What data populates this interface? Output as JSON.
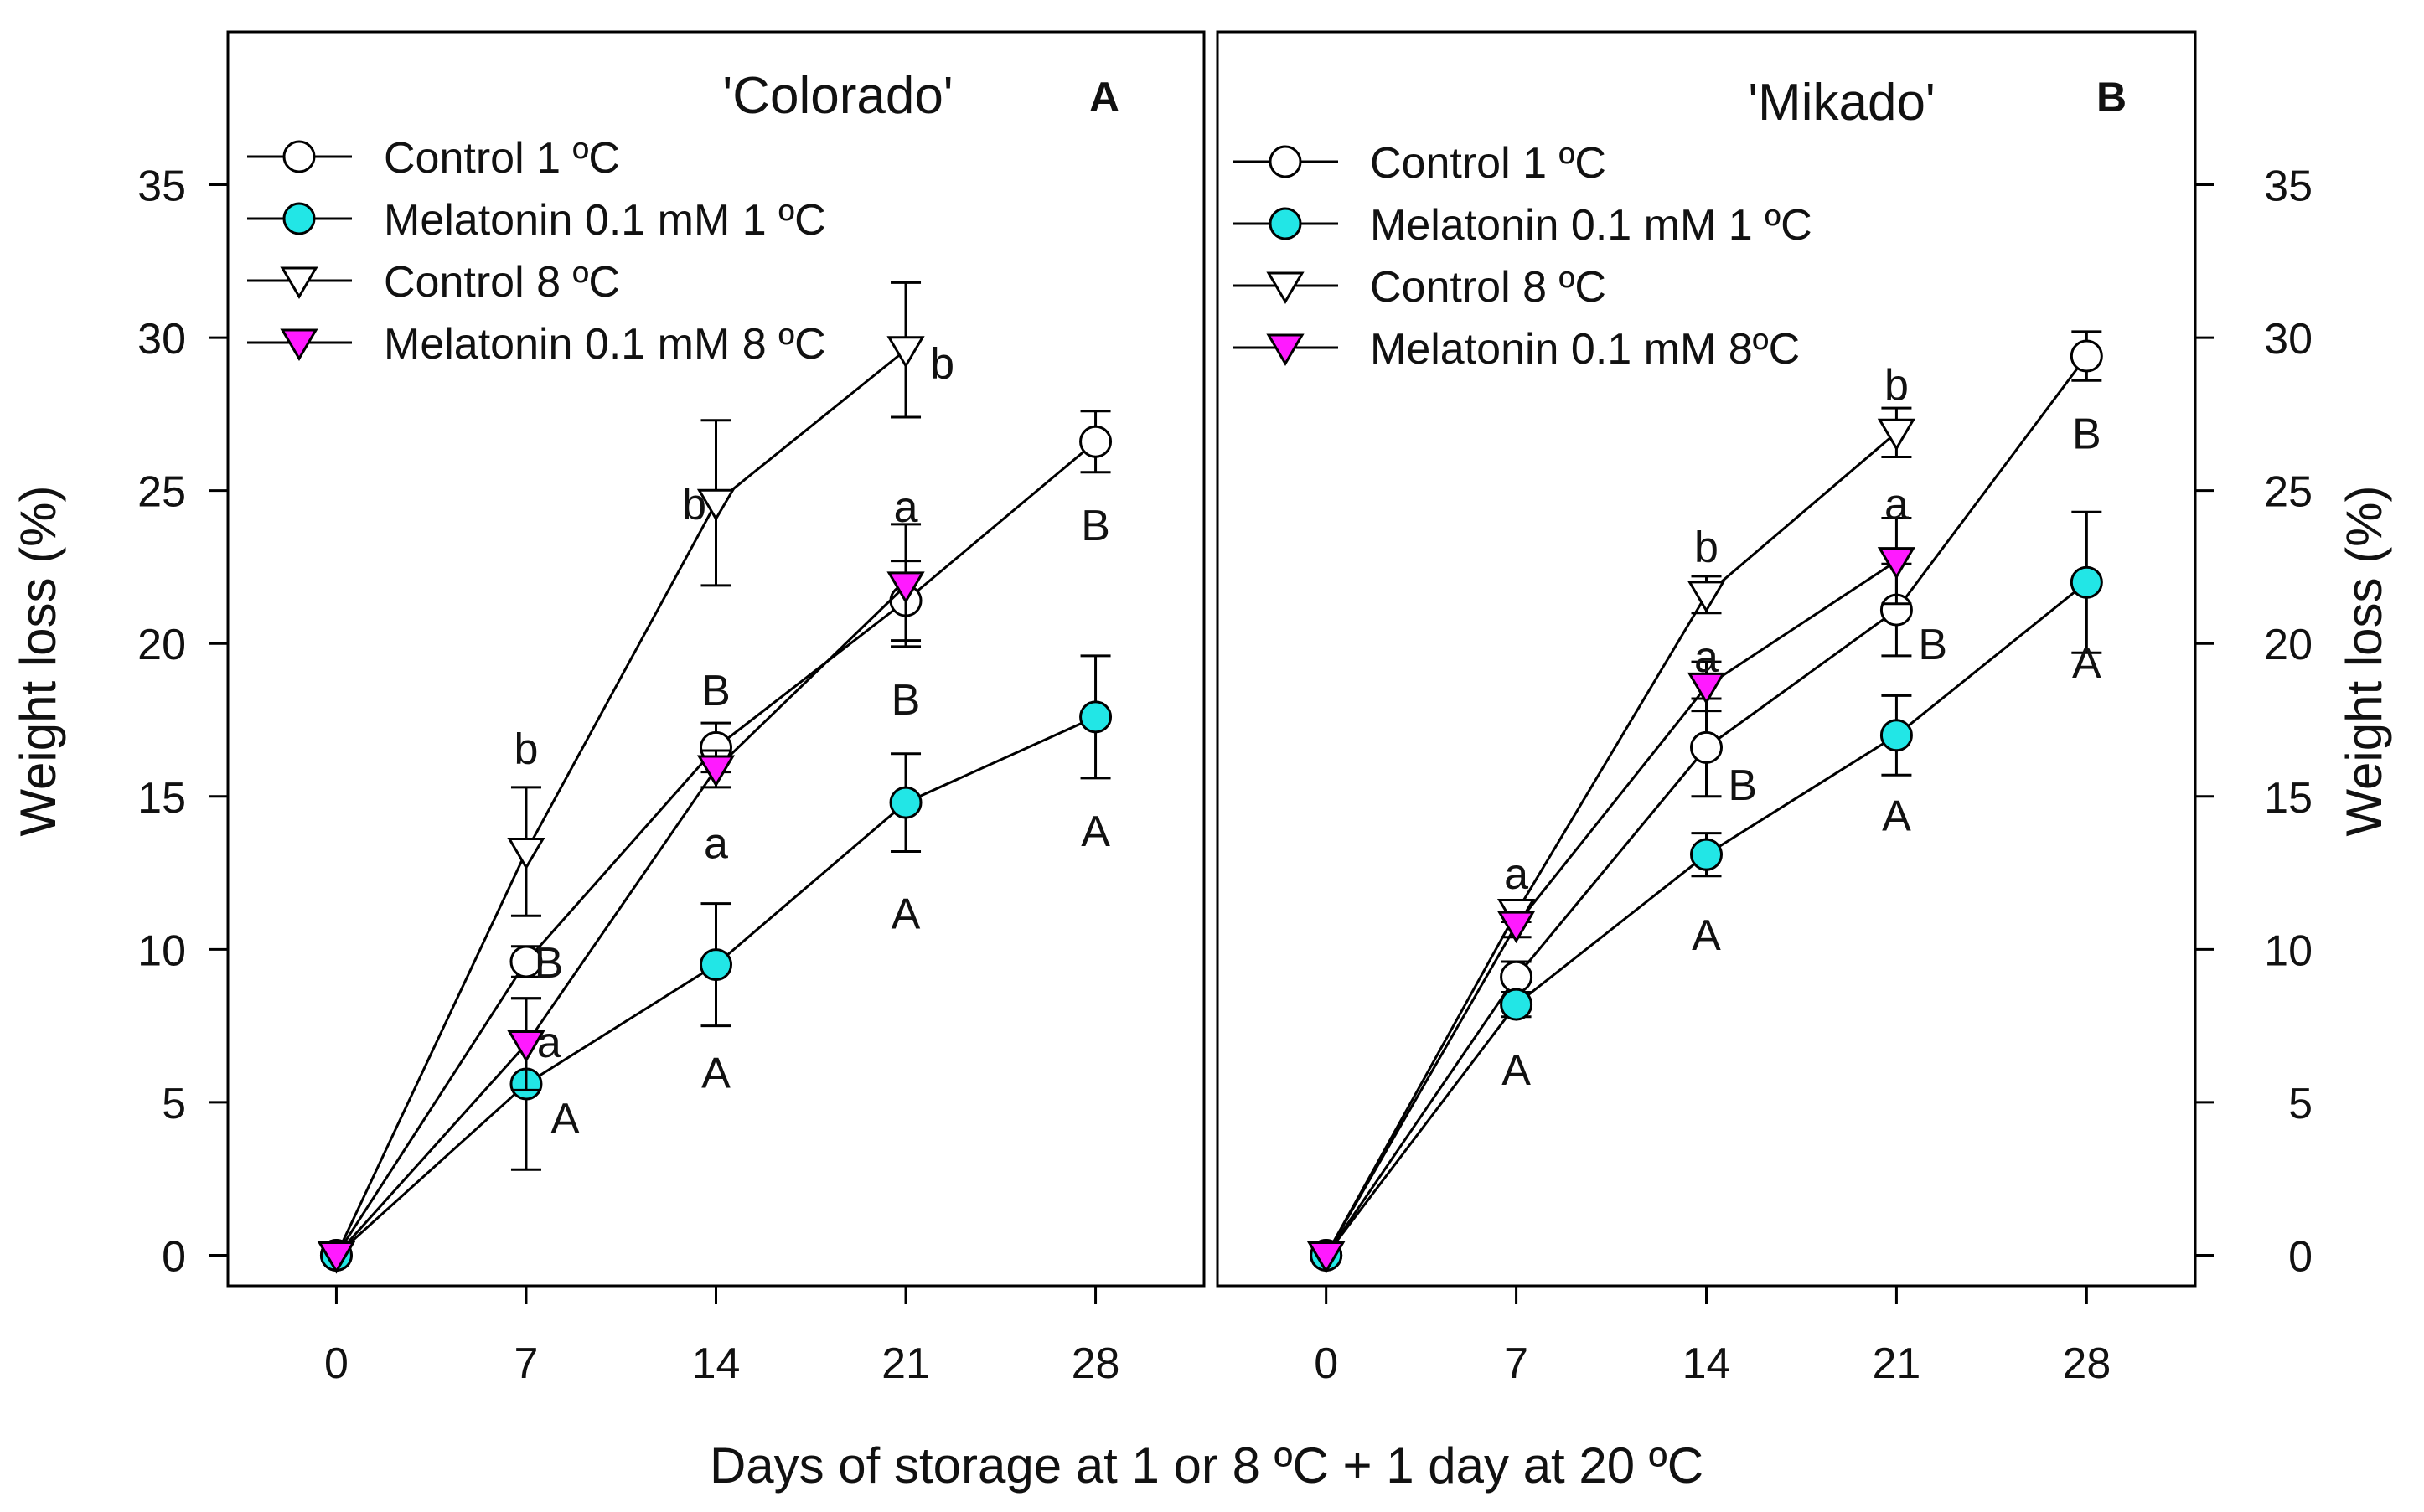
{
  "figure": {
    "y_axis_label": "Weight loss (%)",
    "x_axis_label": "Days of storage at 1 or 8 ºC + 1 day at 20 ºC"
  },
  "chart_data": [
    {
      "type": "line",
      "panel_letter": "A",
      "title": "'Colorado'",
      "xlabel": "Days of storage at 1 or 8 ºC + 1 day at 20 ºC",
      "ylabel": "Weight loss (%)",
      "ylabel_side": "left",
      "x_ticks": [
        0,
        7,
        14,
        21,
        28
      ],
      "y_ticks": [
        0,
        5,
        10,
        15,
        20,
        25,
        30,
        35
      ],
      "xlim": [
        -4,
        32
      ],
      "ylim": [
        -1,
        40
      ],
      "legend_placement": "top-left",
      "series": [
        {
          "name": "Control 1 ºC",
          "marker": "circle",
          "fill": "#ffffff",
          "x": [
            0,
            7,
            14,
            21,
            28
          ],
          "values": [
            0,
            9.6,
            16.6,
            21.4,
            26.6
          ],
          "err": [
            0,
            0.5,
            0.8,
            1.3,
            1.0
          ]
        },
        {
          "name": "Melatonin 0.1 mM 1 ºC",
          "marker": "circle",
          "fill": "#22e6e6",
          "x": [
            0,
            7,
            14,
            21,
            28
          ],
          "values": [
            0,
            5.6,
            9.5,
            14.8,
            17.6
          ],
          "err": [
            0,
            2.8,
            2.0,
            1.6,
            2.0
          ]
        },
        {
          "name": "Control 8 ºC",
          "marker": "triangle-down",
          "fill": "#ffffff",
          "x": [
            0,
            7,
            14,
            21
          ],
          "values": [
            0,
            13.2,
            24.6,
            29.6
          ],
          "err": [
            0,
            2.1,
            2.7,
            2.2
          ]
        },
        {
          "name": "Melatonin 0.1 mM 8 ºC",
          "marker": "triangle-down",
          "fill": "#ff1aff",
          "x": [
            0,
            7,
            14,
            21
          ],
          "values": [
            0,
            6.9,
            15.9,
            21.9
          ],
          "err": [
            0,
            1.5,
            0.6,
            2.0
          ]
        }
      ],
      "annotations": [
        {
          "text": "b",
          "x": 7,
          "y": 16.6
        },
        {
          "text": "B",
          "x": 7.3,
          "y": 9.6,
          "anchor": "start"
        },
        {
          "text": "a",
          "x": 7.4,
          "y": 7.0,
          "anchor": "start"
        },
        {
          "text": "A",
          "x": 7.9,
          "y": 4.5,
          "anchor": "start"
        },
        {
          "text": "b",
          "x": 13.2,
          "y": 24.6
        },
        {
          "text": "B",
          "x": 14,
          "y": 18.5
        },
        {
          "text": "a",
          "x": 14,
          "y": 13.5
        },
        {
          "text": "A",
          "x": 14,
          "y": 6.0
        },
        {
          "text": "b",
          "x": 21.9,
          "y": 29.2,
          "anchor": "start"
        },
        {
          "text": "a",
          "x": 21,
          "y": 24.5
        },
        {
          "text": "B",
          "x": 21,
          "y": 18.2
        },
        {
          "text": "A",
          "x": 21,
          "y": 11.2
        },
        {
          "text": "B",
          "x": 28,
          "y": 23.9
        },
        {
          "text": "A",
          "x": 28,
          "y": 13.9
        }
      ]
    },
    {
      "type": "line",
      "panel_letter": "B",
      "title": "'Mikado'",
      "xlabel": "Days of storage at 1 or 8 ºC + 1 day at 20 ºC",
      "ylabel": "Weight loss (%)",
      "ylabel_side": "right",
      "x_ticks": [
        0,
        7,
        14,
        21,
        28
      ],
      "y_ticks": [
        0,
        5,
        10,
        15,
        20,
        25,
        30,
        35
      ],
      "xlim": [
        -4,
        32
      ],
      "ylim": [
        -1,
        40
      ],
      "legend_placement": "top-left",
      "series": [
        {
          "name": "Control 1 ºC",
          "marker": "circle",
          "fill": "#ffffff",
          "x": [
            0,
            7,
            14,
            21,
            28
          ],
          "values": [
            0,
            9.1,
            16.6,
            21.1,
            29.4
          ],
          "err": [
            0,
            0.5,
            1.6,
            1.5,
            0.8
          ]
        },
        {
          "name": "Melatonin 0.1 mM 1 ºC",
          "marker": "circle",
          "fill": "#22e6e6",
          "x": [
            0,
            7,
            14,
            21,
            28
          ],
          "values": [
            0,
            8.2,
            13.1,
            17.0,
            22.0
          ],
          "err": [
            0,
            0.4,
            0.7,
            1.3,
            2.3
          ]
        },
        {
          "name": "Control 8 ºC",
          "marker": "triangle-down",
          "fill": "#ffffff",
          "x": [
            0,
            7,
            14,
            21
          ],
          "values": [
            0,
            11.2,
            21.6,
            26.9
          ],
          "err": [
            0,
            0.3,
            0.6,
            0.8
          ]
        },
        {
          "name": "Melatonin 0.1 mM 8ºC",
          "marker": "triangle-down",
          "fill": "#ff1aff",
          "x": [
            0,
            7,
            14,
            21
          ],
          "values": [
            0,
            10.8,
            18.6,
            22.7
          ],
          "err": [
            0,
            0.4,
            0.8,
            1.4
          ]
        }
      ],
      "annotations": [
        {
          "text": "a",
          "x": 7,
          "y": 12.5
        },
        {
          "text": "A",
          "x": 7,
          "y": 6.1
        },
        {
          "text": "b",
          "x": 14,
          "y": 23.2
        },
        {
          "text": "a",
          "x": 14,
          "y": 19.6
        },
        {
          "text": "B",
          "x": 14.8,
          "y": 15.4,
          "anchor": "start"
        },
        {
          "text": "A",
          "x": 14,
          "y": 10.5
        },
        {
          "text": "b",
          "x": 21,
          "y": 28.5
        },
        {
          "text": "a",
          "x": 21,
          "y": 24.6
        },
        {
          "text": "B",
          "x": 21.8,
          "y": 20.0,
          "anchor": "start"
        },
        {
          "text": "A",
          "x": 21,
          "y": 14.4
        },
        {
          "text": "B",
          "x": 28,
          "y": 26.9
        },
        {
          "text": "A",
          "x": 28,
          "y": 19.4
        }
      ]
    }
  ]
}
